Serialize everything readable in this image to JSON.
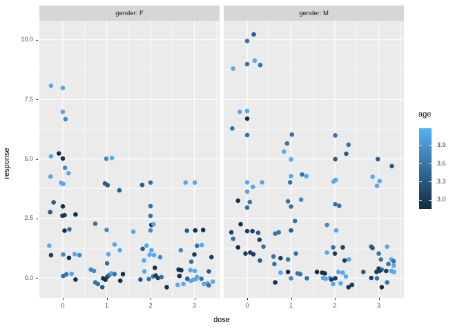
{
  "chart_data": {
    "type": "scatter",
    "facet_variable": "gender",
    "xlabel": "dose",
    "ylabel": "response",
    "x_ticks": {
      "values": [
        0,
        1,
        2,
        3
      ],
      "labels": [
        "0",
        "1",
        "2",
        "3"
      ]
    },
    "y_ticks": {
      "values": [
        0,
        2.5,
        5,
        7.5,
        10
      ],
      "labels": [
        "0.0",
        "2.5",
        "5.0",
        "7.5",
        "10.0"
      ]
    },
    "x_minor": [
      0.5,
      1.5,
      2.5,
      3.5
    ],
    "y_minor": [
      1.25,
      3.75,
      6.25,
      8.75
    ],
    "xlim": [
      -0.45,
      3.6
    ],
    "ylim": [
      -0.84,
      10.79
    ],
    "grid": true,
    "panel_bg": "#ebebeb",
    "grid_color": "#ffffff",
    "legend": {
      "title": "age",
      "position": "right",
      "type": "colorbar",
      "tick_values": [
        3.9,
        3.6,
        3.3,
        3.0
      ],
      "tick_labels": [
        "3.9",
        "3.6",
        "3.3",
        "3.0"
      ],
      "bar_range": [
        2.85,
        4.18
      ],
      "gradient_high": "#56B1F7",
      "gradient_low": "#132B43"
    },
    "palette": {
      "note": "shade index -> color hex and approximate age value",
      "colors": [
        "#142F49",
        "#1C3E5E",
        "#2A5A86",
        "#3572A8",
        "#4189C9",
        "#55A8EF"
      ],
      "approx_age": [
        2.9,
        3.1,
        3.3,
        3.5,
        3.7,
        3.9
      ]
    },
    "point_style": {
      "shape": "circle",
      "radius_px": 3.3
    },
    "facets": [
      {
        "label": "gender: F",
        "points": [
          [
            -0.27,
            8.07,
            5
          ],
          [
            0.0,
            7.98,
            5
          ],
          [
            0.0,
            6.98,
            5
          ],
          [
            0.06,
            6.67,
            4
          ],
          [
            -0.27,
            5.11,
            5
          ],
          [
            -0.09,
            5.23,
            0
          ],
          [
            0.0,
            5.02,
            0
          ],
          [
            0.99,
            5.01,
            4
          ],
          [
            1.12,
            5.04,
            5
          ],
          [
            0.05,
            4.63,
            4
          ],
          [
            0.13,
            4.4,
            5
          ],
          [
            -0.28,
            4.26,
            5
          ],
          [
            -0.04,
            4.0,
            5
          ],
          [
            0.01,
            3.95,
            5
          ],
          [
            0.96,
            3.97,
            2
          ],
          [
            1.02,
            3.9,
            2
          ],
          [
            1.29,
            3.68,
            2
          ],
          [
            1.81,
            3.91,
            2
          ],
          [
            2.0,
            4.01,
            3
          ],
          [
            2.8,
            4.01,
            5
          ],
          [
            3.01,
            4.01,
            5
          ],
          [
            -0.21,
            3.18,
            2
          ],
          [
            0.0,
            3.01,
            0
          ],
          [
            2.0,
            3.02,
            3
          ],
          [
            -0.29,
            2.77,
            2
          ],
          [
            -0.01,
            2.62,
            1
          ],
          [
            0.04,
            2.64,
            1
          ],
          [
            0.29,
            2.67,
            0
          ],
          [
            2.0,
            2.61,
            3
          ],
          [
            0.74,
            2.28,
            3
          ],
          [
            0.04,
            1.99,
            0
          ],
          [
            0.15,
            2.05,
            3
          ],
          [
            1.0,
            2.02,
            4
          ],
          [
            1.61,
            1.95,
            5
          ],
          [
            2.02,
            2.23,
            0
          ],
          [
            2.07,
            2.26,
            5
          ],
          [
            2.0,
            2.0,
            4
          ],
          [
            2.83,
            1.99,
            2
          ],
          [
            3.02,
            2.0,
            0
          ],
          [
            3.2,
            2.02,
            0
          ],
          [
            -0.31,
            1.36,
            5
          ],
          [
            -0.27,
            0.96,
            1
          ],
          [
            0.01,
            0.99,
            4
          ],
          [
            0.14,
            0.85,
            0
          ],
          [
            0.27,
            1.01,
            5
          ],
          [
            0.38,
            0.96,
            4
          ],
          [
            1.18,
            1.41,
            5
          ],
          [
            1.04,
            1.0,
            5
          ],
          [
            1.3,
            1.17,
            5
          ],
          [
            1.01,
            0.62,
            3
          ],
          [
            0.01,
            0.09,
            3
          ],
          [
            0.08,
            0.16,
            3
          ],
          [
            0.2,
            0.18,
            5
          ],
          [
            0.29,
            -0.06,
            0
          ],
          [
            0.64,
            0.36,
            4
          ],
          [
            0.71,
            0.3,
            4
          ],
          [
            0.74,
            -0.18,
            3
          ],
          [
            0.8,
            -0.25,
            3
          ],
          [
            0.9,
            -0.38,
            2
          ],
          [
            0.92,
            -0.01,
            0
          ],
          [
            0.97,
            -0.07,
            0
          ],
          [
            1.02,
            0.07,
            1
          ],
          [
            1.06,
            0.13,
            3
          ],
          [
            1.11,
            0.2,
            5
          ],
          [
            1.18,
            0.17,
            3
          ],
          [
            1.37,
            0.17,
            0
          ],
          [
            1.31,
            -0.11,
            0
          ],
          [
            1.82,
            1.23,
            2
          ],
          [
            1.91,
            1.36,
            5
          ],
          [
            2.02,
            1.17,
            5
          ],
          [
            1.98,
            0.98,
            5
          ],
          [
            2.08,
            0.96,
            5
          ],
          [
            2.22,
            0.88,
            4
          ],
          [
            1.85,
            0.74,
            5
          ],
          [
            2.1,
            0.43,
            0
          ],
          [
            1.86,
            0.28,
            5
          ],
          [
            1.96,
            -0.04,
            3
          ],
          [
            2.06,
            0.07,
            3
          ],
          [
            2.12,
            0.11,
            1
          ],
          [
            2.17,
            0.01,
            1
          ],
          [
            2.25,
            0.04,
            3
          ],
          [
            1.77,
            -0.06,
            2
          ],
          [
            2.37,
            -0.38,
            0
          ],
          [
            2.62,
            -0.28,
            5
          ],
          [
            2.75,
            -0.25,
            5
          ],
          [
            2.69,
            1.17,
            4
          ],
          [
            2.93,
            0.69,
            3
          ],
          [
            3.0,
            0.99,
            1
          ],
          [
            3.06,
            1.35,
            3
          ],
          [
            3.17,
            1.39,
            5
          ],
          [
            3.39,
            0.88,
            1
          ],
          [
            2.64,
            0.36,
            0
          ],
          [
            2.7,
            0.33,
            0
          ],
          [
            2.91,
            0.33,
            5
          ],
          [
            3.01,
            0.3,
            5
          ],
          [
            3.33,
            0.28,
            2
          ],
          [
            2.66,
            0.09,
            0
          ],
          [
            2.84,
            -0.03,
            2
          ],
          [
            2.92,
            -0.11,
            5
          ],
          [
            2.98,
            -0.07,
            5
          ],
          [
            3.04,
            -0.03,
            5
          ],
          [
            3.06,
            0.04,
            5
          ],
          [
            3.16,
            -0.03,
            3
          ],
          [
            3.22,
            -0.25,
            5
          ],
          [
            3.3,
            -0.22,
            5
          ],
          [
            3.33,
            -0.3,
            3
          ],
          [
            3.42,
            -0.15,
            5
          ]
        ]
      },
      {
        "label": "gender: M",
        "points": [
          [
            0.15,
            10.23,
            2
          ],
          [
            0.0,
            9.95,
            3
          ],
          [
            0.17,
            9.13,
            5
          ],
          [
            0.0,
            8.98,
            3
          ],
          [
            0.3,
            8.94,
            3
          ],
          [
            -0.32,
            8.79,
            5
          ],
          [
            -0.17,
            6.98,
            5
          ],
          [
            0.0,
            7.01,
            5
          ],
          [
            0.0,
            6.69,
            0
          ],
          [
            -0.34,
            6.28,
            3
          ],
          [
            0.0,
            6.0,
            3
          ],
          [
            1.02,
            6.02,
            3
          ],
          [
            0.91,
            5.65,
            3
          ],
          [
            0.84,
            5.31,
            5
          ],
          [
            1.0,
            4.98,
            5
          ],
          [
            2.01,
            5.99,
            3
          ],
          [
            2.31,
            5.6,
            3
          ],
          [
            2.26,
            5.22,
            2
          ],
          [
            2.01,
            4.99,
            2
          ],
          [
            2.98,
            4.99,
            2
          ],
          [
            3.3,
            4.7,
            2
          ],
          [
            1.0,
            4.28,
            5
          ],
          [
            1.25,
            4.35,
            3
          ],
          [
            1.35,
            4.28,
            5
          ],
          [
            0.0,
            4.02,
            5
          ],
          [
            0.13,
            3.83,
            5
          ],
          [
            0.34,
            4.02,
            5
          ],
          [
            0.98,
            4.02,
            3
          ],
          [
            1.97,
            4.05,
            5
          ],
          [
            2.02,
            4.12,
            5
          ],
          [
            2.86,
            4.25,
            5
          ],
          [
            3.02,
            4.07,
            5
          ],
          [
            2.96,
            3.87,
            5
          ],
          [
            0.0,
            3.63,
            5
          ],
          [
            -0.21,
            3.25,
            0
          ],
          [
            0.06,
            3.19,
            3
          ],
          [
            0.0,
            2.96,
            3
          ],
          [
            0.93,
            3.22,
            3
          ],
          [
            1.0,
            3.0,
            3
          ],
          [
            1.23,
            3.29,
            4
          ],
          [
            2.01,
            3.1,
            3
          ],
          [
            2.1,
            3.03,
            3
          ],
          [
            1.09,
            2.4,
            3
          ],
          [
            1.82,
            2.23,
            4
          ],
          [
            2.03,
            2.0,
            5
          ],
          [
            -0.15,
            2.26,
            0
          ],
          [
            -0.36,
            1.92,
            1
          ],
          [
            -0.32,
            1.65,
            3
          ],
          [
            0.0,
            1.97,
            1
          ],
          [
            0.12,
            1.97,
            1
          ],
          [
            0.25,
            1.9,
            2
          ],
          [
            0.28,
            1.61,
            1
          ],
          [
            0.37,
            1.32,
            3
          ],
          [
            -0.21,
            1.29,
            0
          ],
          [
            -0.04,
            1.03,
            1
          ],
          [
            0.07,
            1.07,
            1
          ],
          [
            0.14,
            1.0,
            1
          ],
          [
            0.29,
            0.74,
            2
          ],
          [
            0.64,
            1.87,
            3
          ],
          [
            0.72,
            1.92,
            3
          ],
          [
            1.0,
            2.0,
            2
          ],
          [
            0.6,
            0.91,
            3
          ],
          [
            0.76,
            0.84,
            1
          ],
          [
            0.93,
            0.78,
            3
          ],
          [
            1.11,
            1.03,
            3
          ],
          [
            0.62,
            0.59,
            3
          ],
          [
            0.76,
            0.23,
            5
          ],
          [
            0.93,
            0.26,
            0
          ],
          [
            1.0,
            -0.01,
            4
          ],
          [
            0.64,
            -0.18,
            0
          ],
          [
            1.15,
            0.2,
            3
          ],
          [
            1.21,
            0.17,
            3
          ],
          [
            1.36,
            -0.01,
            3
          ],
          [
            1.96,
            1.29,
            3
          ],
          [
            2.18,
            1.29,
            1
          ],
          [
            1.82,
            1.07,
            5
          ],
          [
            2.0,
            1.03,
            1
          ],
          [
            2.22,
            0.74,
            1
          ],
          [
            2.32,
            0.78,
            5
          ],
          [
            2.08,
            0.26,
            5
          ],
          [
            2.18,
            0.23,
            5
          ],
          [
            1.59,
            0.26,
            0
          ],
          [
            1.71,
            0.23,
            0
          ],
          [
            1.77,
            0.2,
            0
          ],
          [
            1.73,
            0.01,
            5
          ],
          [
            1.79,
            -0.03,
            5
          ],
          [
            1.89,
            0.01,
            5
          ],
          [
            1.92,
            -0.06,
            1
          ],
          [
            2.01,
            -0.01,
            1
          ],
          [
            2.13,
            -0.22,
            5
          ],
          [
            2.25,
            0.07,
            5
          ],
          [
            2.31,
            -0.38,
            0
          ],
          [
            1.96,
            -0.25,
            5
          ],
          [
            2.39,
            -0.28,
            1
          ],
          [
            2.65,
            0.26,
            2
          ],
          [
            2.83,
            1.32,
            2
          ],
          [
            2.86,
            1.26,
            2
          ],
          [
            3.19,
            1.32,
            5
          ],
          [
            3.0,
            1.03,
            3
          ],
          [
            3.05,
            0.78,
            3
          ],
          [
            3.29,
            0.78,
            5
          ],
          [
            3.34,
            0.71,
            3
          ],
          [
            3.0,
            0.4,
            1
          ],
          [
            3.07,
            0.36,
            3
          ],
          [
            3.22,
            0.59,
            3
          ],
          [
            2.95,
            0.26,
            1
          ],
          [
            3.02,
            0.3,
            1
          ],
          [
            3.17,
            0.3,
            1
          ],
          [
            2.83,
            0.01,
            1
          ],
          [
            2.96,
            -0.01,
            3
          ],
          [
            3.07,
            -0.38,
            0
          ],
          [
            3.19,
            -0.18,
            3
          ],
          [
            3.29,
            0.3,
            5
          ],
          [
            3.35,
            0.26,
            5
          ],
          [
            3.34,
            0.52,
            5
          ]
        ]
      }
    ]
  }
}
